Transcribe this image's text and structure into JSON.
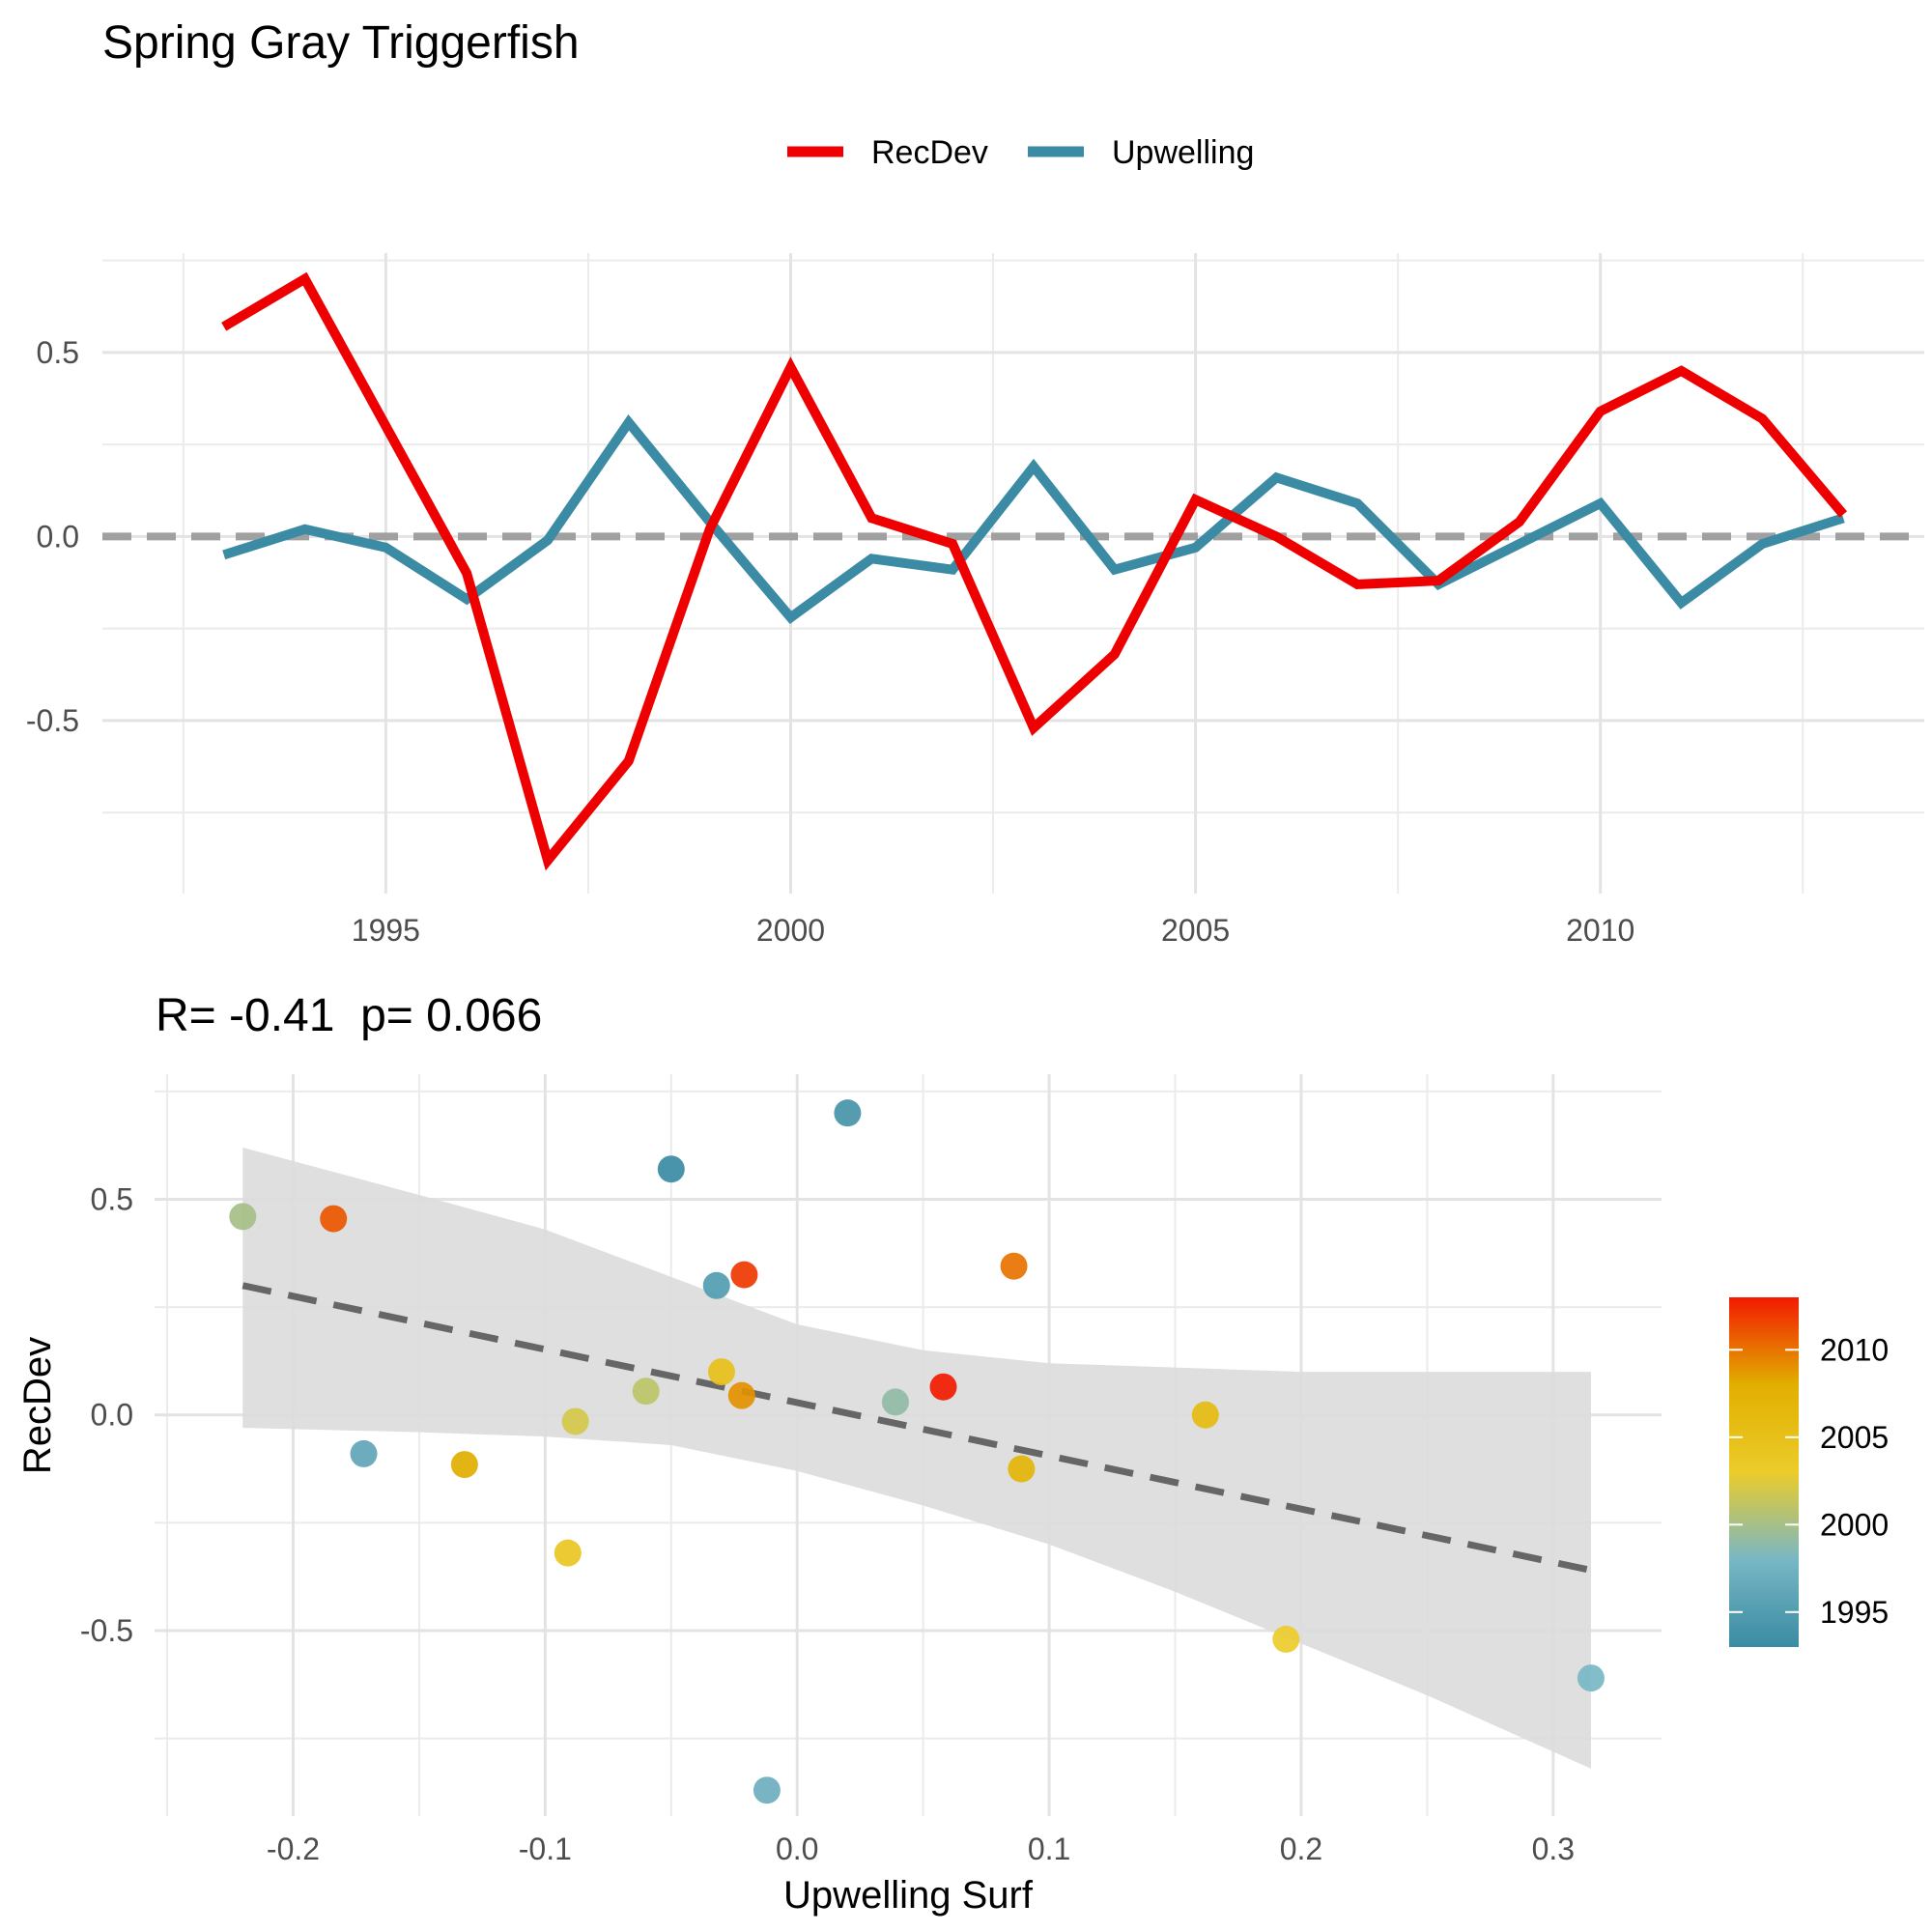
{
  "title": "Spring Gray Triggerfish",
  "legend": {
    "position": "top",
    "items": [
      {
        "label": "RecDev",
        "color": "#EE0000"
      },
      {
        "label": "Upwelling",
        "color": "#3A8BA3"
      }
    ]
  },
  "chart_data": [
    {
      "type": "line",
      "title": "",
      "xlabel": "",
      "ylabel": "",
      "x": [
        1993,
        1994,
        1995,
        1996,
        1997,
        1998,
        1999,
        2000,
        2001,
        2002,
        2003,
        2004,
        2005,
        2006,
        2007,
        2008,
        2009,
        2010,
        2011,
        2012,
        2013
      ],
      "x_ticks": [
        1995,
        2000,
        2005,
        2010
      ],
      "x_ticks_labels": [
        "1995",
        "2000",
        "2005",
        "2010"
      ],
      "y_ticks": [
        -0.5,
        0.0,
        0.5
      ],
      "y_tick_labels": [
        "-0.5",
        "0.0",
        "0.5"
      ],
      "xlim": [
        1991.5,
        2014
      ],
      "ylim": [
        -0.97,
        0.77
      ],
      "grid": true,
      "reference_line": {
        "y": 0,
        "style": "dashed",
        "color": "#A0A0A0"
      },
      "series": [
        {
          "name": "RecDev",
          "color": "#EE0000",
          "values": [
            0.57,
            0.7,
            0.3,
            -0.1,
            -0.88,
            -0.61,
            0.02,
            0.46,
            0.05,
            -0.02,
            -0.52,
            -0.32,
            0.1,
            0.0,
            -0.13,
            -0.12,
            0.04,
            0.34,
            0.45,
            0.32,
            0.06
          ]
        },
        {
          "name": "Upwelling",
          "color": "#3A8BA3",
          "values": [
            -0.05,
            0.02,
            -0.03,
            -0.17,
            -0.01,
            0.31,
            0.04,
            -0.22,
            -0.06,
            -0.09,
            0.19,
            -0.09,
            -0.03,
            0.16,
            0.09,
            -0.13,
            -0.02,
            0.09,
            -0.18,
            -0.02,
            0.05
          ]
        }
      ]
    },
    {
      "type": "scatter",
      "title": "R= -0.41  p= 0.066",
      "xlabel": "Upwelling Surf",
      "ylabel": "RecDev",
      "xlim": [
        -0.255,
        0.343
      ],
      "ylim": [
        -0.93,
        0.79
      ],
      "x_ticks": [
        -0.2,
        -0.1,
        0.0,
        0.1,
        0.2,
        0.3
      ],
      "x_tick_labels": [
        "-0.2",
        "-0.1",
        "0.0",
        "0.1",
        "0.2",
        "0.3"
      ],
      "y_ticks": [
        -0.5,
        0.0,
        0.5
      ],
      "y_tick_labels": [
        "-0.5",
        "0.0",
        "0.5"
      ],
      "grid": true,
      "trend_line": {
        "x": [
          -0.22,
          0.315
        ],
        "y": [
          0.3,
          -0.36
        ],
        "style": "dashed",
        "color": "#666666"
      },
      "confidence_band": {
        "x": [
          -0.22,
          -0.15,
          -0.1,
          -0.05,
          0.0,
          0.05,
          0.1,
          0.15,
          0.2,
          0.25,
          0.315
        ],
        "upper": [
          0.62,
          0.51,
          0.43,
          0.32,
          0.21,
          0.15,
          0.12,
          0.11,
          0.1,
          0.1,
          0.1
        ],
        "lower": [
          -0.03,
          -0.04,
          -0.05,
          -0.07,
          -0.13,
          -0.21,
          -0.3,
          -0.41,
          -0.53,
          -0.65,
          -0.82
        ],
        "color": "#DCDCDC"
      },
      "points": [
        {
          "x": -0.05,
          "y": 0.57,
          "year": 1993
        },
        {
          "x": 0.02,
          "y": 0.7,
          "year": 1994
        },
        {
          "x": -0.032,
          "y": 0.3,
          "year": 1995
        },
        {
          "x": -0.172,
          "y": -0.09,
          "year": 1996
        },
        {
          "x": -0.012,
          "y": -0.87,
          "year": 1997
        },
        {
          "x": 0.315,
          "y": -0.61,
          "year": 1998
        },
        {
          "x": 0.039,
          "y": 0.03,
          "year": 1999
        },
        {
          "x": -0.22,
          "y": 0.46,
          "year": 2000
        },
        {
          "x": -0.06,
          "y": 0.055,
          "year": 2001
        },
        {
          "x": -0.088,
          "y": -0.015,
          "year": 2002
        },
        {
          "x": 0.194,
          "y": -0.52,
          "year": 2003
        },
        {
          "x": -0.091,
          "y": -0.32,
          "year": 2004
        },
        {
          "x": -0.03,
          "y": 0.1,
          "year": 2005
        },
        {
          "x": 0.162,
          "y": 0.0,
          "year": 2006
        },
        {
          "x": 0.089,
          "y": -0.125,
          "year": 2007
        },
        {
          "x": -0.132,
          "y": -0.115,
          "year": 2008
        },
        {
          "x": -0.022,
          "y": 0.045,
          "year": 2009
        },
        {
          "x": 0.086,
          "y": 0.345,
          "year": 2010
        },
        {
          "x": -0.184,
          "y": 0.455,
          "year": 2011
        },
        {
          "x": -0.021,
          "y": 0.325,
          "year": 2012
        },
        {
          "x": 0.058,
          "y": 0.065,
          "year": 2013
        }
      ],
      "colorbar": {
        "range": [
          1993,
          2013
        ],
        "ticks": [
          1995,
          2000,
          2005,
          2010
        ],
        "tick_labels": [
          "1995",
          "2000",
          "2005",
          "2010"
        ],
        "colors": [
          "#3A8BA3",
          "#78B7C5",
          "#EBCC2A",
          "#E1AF00",
          "#F21A00"
        ]
      }
    }
  ]
}
